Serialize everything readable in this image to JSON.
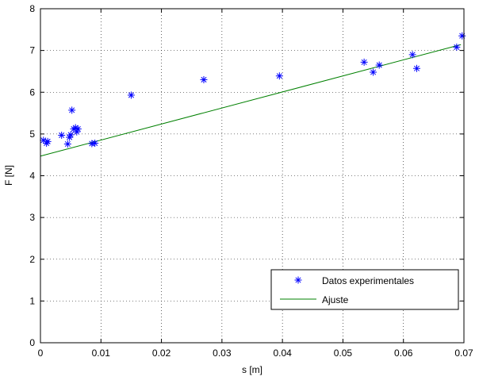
{
  "chart_data": {
    "type": "scatter",
    "xlabel": "s [m]",
    "ylabel": "F [N]",
    "xlim": [
      0,
      0.07
    ],
    "ylim": [
      0,
      8
    ],
    "xticks": [
      0,
      0.01,
      0.02,
      0.03,
      0.04,
      0.05,
      0.06,
      0.07
    ],
    "xtick_labels": [
      "0",
      "0.01",
      "0.02",
      "0.03",
      "0.04",
      "0.05",
      "0.06",
      "0.07"
    ],
    "yticks": [
      0,
      1,
      2,
      3,
      4,
      5,
      6,
      7,
      8
    ],
    "ytick_labels": [
      "0",
      "1",
      "2",
      "3",
      "4",
      "5",
      "6",
      "7",
      "8"
    ],
    "grid": true,
    "legend_position": "bottom-right",
    "series": [
      {
        "name": "Datos experimentales",
        "kind": "scatter",
        "marker": "asterisk",
        "color": "#0000ff",
        "x": [
          0.0005,
          0.001,
          0.0012,
          0.0035,
          0.0045,
          0.0048,
          0.005,
          0.0052,
          0.0055,
          0.0058,
          0.006,
          0.0062,
          0.0085,
          0.009,
          0.015,
          0.027,
          0.0395,
          0.0535,
          0.055,
          0.056,
          0.0615,
          0.0622,
          0.0688,
          0.0697
        ],
        "y": [
          4.85,
          4.78,
          4.82,
          4.97,
          4.76,
          4.92,
          4.98,
          5.57,
          5.12,
          5.15,
          5.05,
          5.12,
          4.77,
          4.78,
          5.93,
          6.3,
          6.39,
          6.72,
          6.48,
          6.65,
          6.9,
          6.57,
          7.08,
          7.35
        ]
      },
      {
        "name": "Ajuste",
        "kind": "line",
        "color": "#008000",
        "x": [
          0,
          0.0695
        ],
        "y": [
          4.47,
          7.14
        ]
      }
    ]
  }
}
